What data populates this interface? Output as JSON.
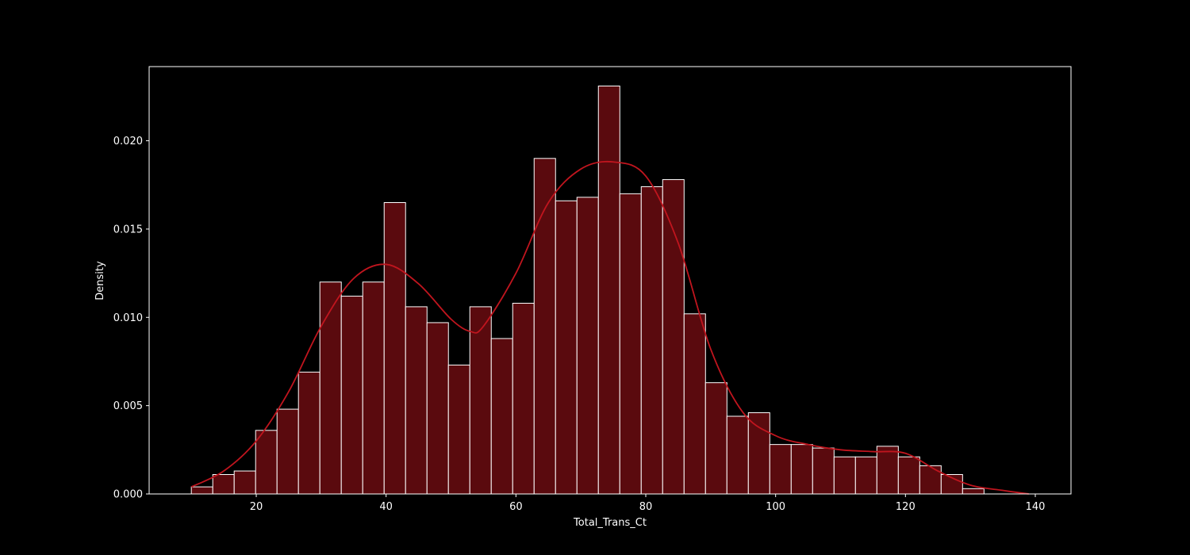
{
  "colors": {
    "background": "#000000",
    "bar_fill": "#5a0a0e",
    "bar_edge": "#ffffff",
    "kde_line": "#c0151e",
    "axes": "#ffffff"
  },
  "chart_data": {
    "type": "histogram",
    "title": "",
    "xlabel": "Total_Trans_Ct",
    "ylabel": "Density",
    "xlim": [
      3.5,
      145.5
    ],
    "ylim": [
      0,
      0.0242
    ],
    "xticks": [
      20,
      40,
      60,
      80,
      100,
      120,
      140
    ],
    "xtick_labels": [
      "20",
      "40",
      "60",
      "80",
      "100",
      "120",
      "140"
    ],
    "yticks": [
      0,
      0.005,
      0.01,
      0.015,
      0.02
    ],
    "ytick_labels": [
      "0.000",
      "0.005",
      "0.010",
      "0.015",
      "0.020"
    ],
    "grid": false,
    "bin_start": 10,
    "bin_width": 3.3,
    "values": [
      0.0004,
      0.0011,
      0.0013,
      0.0036,
      0.0048,
      0.0069,
      0.012,
      0.0112,
      0.012,
      0.0165,
      0.0106,
      0.0097,
      0.0073,
      0.0106,
      0.0088,
      0.0108,
      0.019,
      0.0166,
      0.0168,
      0.0231,
      0.017,
      0.0174,
      0.0178,
      0.0102,
      0.0063,
      0.0044,
      0.0046,
      0.0028,
      0.0028,
      0.0026,
      0.0021,
      0.0021,
      0.0027,
      0.0021,
      0.0016,
      0.0011,
      0.0003
    ],
    "kde": {
      "x": [
        10,
        15,
        20,
        25,
        30,
        35,
        40,
        45,
        50,
        53,
        55,
        60,
        65,
        70,
        75,
        80,
        85,
        90,
        95,
        100,
        105,
        110,
        115,
        120,
        125,
        130,
        135,
        139
      ],
      "y": [
        0.0004,
        0.0013,
        0.003,
        0.0058,
        0.0095,
        0.0122,
        0.013,
        0.0119,
        0.0099,
        0.0092,
        0.0095,
        0.0125,
        0.0165,
        0.0184,
        0.0188,
        0.018,
        0.0142,
        0.0082,
        0.0046,
        0.0033,
        0.0028,
        0.0025,
        0.0024,
        0.0023,
        0.0013,
        0.0005,
        0.0002,
        0.0
      ]
    }
  }
}
